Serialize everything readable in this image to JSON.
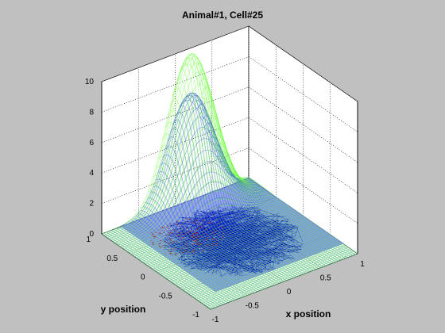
{
  "window": {
    "title": "Animal#1, Cell#25"
  },
  "chart_data": {
    "type": "surface3d",
    "title": "Animal#1, Cell#25",
    "xlabel": "x position",
    "ylabel": "y position",
    "zlabel": "",
    "xlim": [
      -1,
      1
    ],
    "ylim": [
      -1,
      1
    ],
    "zlim": [
      0,
      10
    ],
    "xticks": [
      "-1",
      "-0.5",
      "0",
      "0.5",
      "1"
    ],
    "yticks": [
      "1",
      "0.5",
      "0",
      "-0.5",
      "-1"
    ],
    "zticks": [
      "0",
      "2",
      "4",
      "6",
      "8",
      "10"
    ],
    "grid": true,
    "series": [
      {
        "kind": "gaussian_surface",
        "color": "#66ff33",
        "center": [
          0.15,
          0.9
        ],
        "peak": 10,
        "sigma": [
          0.28,
          0.22
        ]
      },
      {
        "kind": "gaussian_surface",
        "color": "#3366cc",
        "center": [
          0.15,
          0.9
        ],
        "peak": 7.4,
        "sigma": [
          0.28,
          0.22
        ]
      },
      {
        "kind": "trajectory",
        "color": "#0000cc",
        "region": "floor disc"
      },
      {
        "kind": "spikes",
        "color": "#cc0000",
        "region": "floor disc"
      }
    ],
    "floor_color": "#7777ff"
  }
}
